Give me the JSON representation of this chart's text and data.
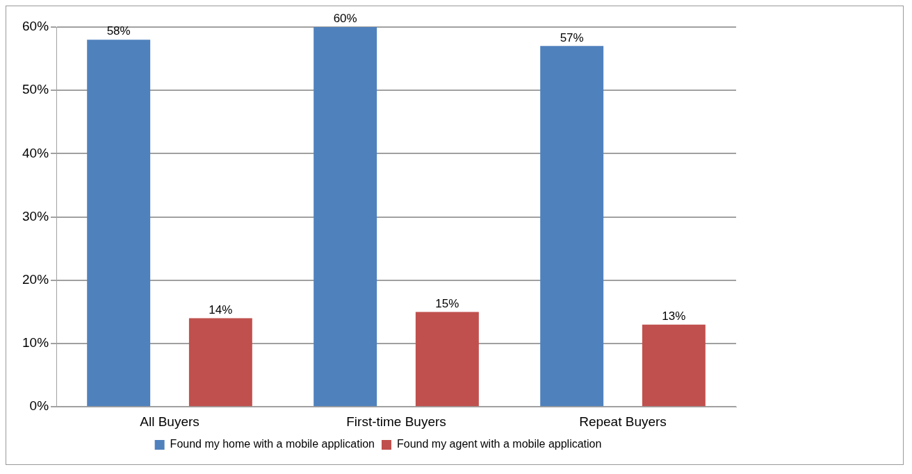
{
  "chart_data": {
    "type": "bar",
    "categories": [
      "All Buyers",
      "First-time Buyers",
      "Repeat Buyers"
    ],
    "series": [
      {
        "name": "Found my home with a mobile application",
        "color": "#4f81bd",
        "values": [
          58,
          60,
          57
        ],
        "value_labels": [
          "58%",
          "60%",
          "57%"
        ]
      },
      {
        "name": "Found my agent with a mobile application",
        "color": "#c0504d",
        "values": [
          14,
          15,
          13
        ],
        "value_labels": [
          "14%",
          "15%",
          "13%"
        ]
      }
    ],
    "ylim": [
      0,
      60
    ],
    "yticks": [
      {
        "value": 0,
        "label": "0%"
      },
      {
        "value": 10,
        "label": "10%"
      },
      {
        "value": 20,
        "label": "20%"
      },
      {
        "value": 30,
        "label": "30%"
      },
      {
        "value": 40,
        "label": "40%"
      },
      {
        "value": 50,
        "label": "50%"
      },
      {
        "value": 60,
        "label": "60%"
      }
    ],
    "grid": "y",
    "legend": "bottom"
  }
}
